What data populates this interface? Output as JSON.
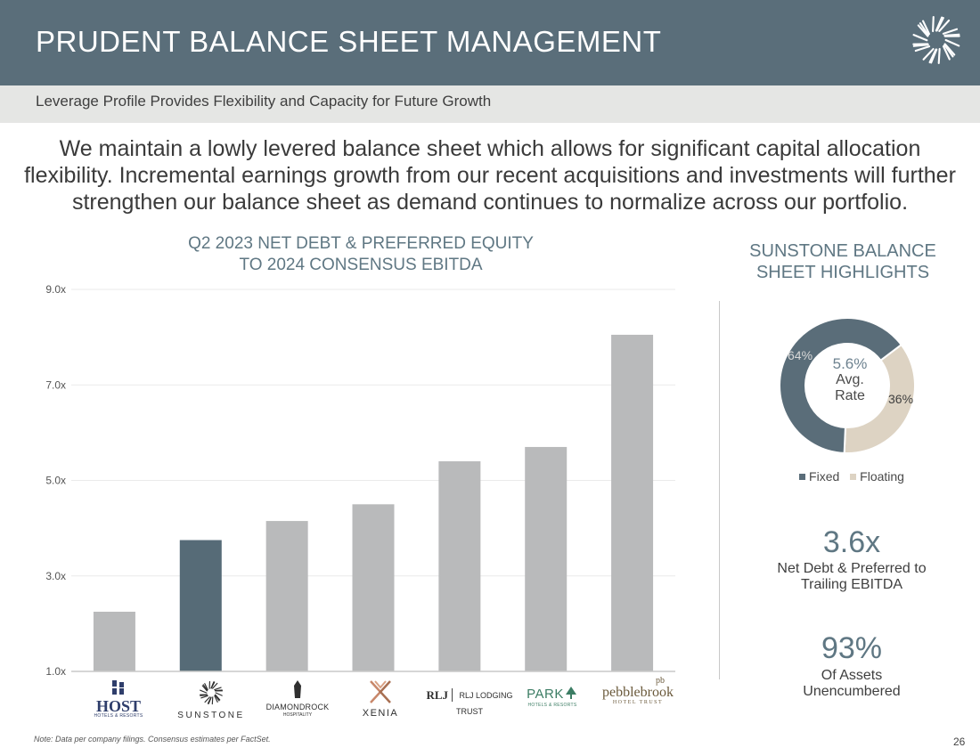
{
  "header": {
    "title": "PRUDENT BALANCE SHEET MANAGEMENT",
    "logo_icon": "sunburst-icon"
  },
  "subheader": {
    "text": "Leverage Profile Provides Flexibility and Capacity for Future Growth"
  },
  "intro": "We maintain a lowly levered balance sheet which allows for significant capital allocation flexibility. Incremental earnings growth from our recent acquisitions and investments will further strengthen our balance sheet as demand continues to normalize across our portfolio.",
  "chart_data": {
    "type": "bar",
    "title": "Q2 2023 NET DEBT & PREFERRED EQUITY TO 2024 CONSENSUS EBITDA",
    "title_line1": "Q2 2023 NET DEBT & PREFERRED EQUITY",
    "title_line2": "TO 2024 CONSENSUS EBITDA",
    "categories": [
      "Host Hotels & Resorts",
      "Sunstone",
      "DiamondRock Hospitality",
      "Xenia",
      "RLJ Lodging Trust",
      "Park Hotels & Resorts",
      "Pebblebrook Hotel Trust"
    ],
    "values": [
      2.25,
      3.75,
      4.15,
      4.5,
      5.4,
      5.7,
      8.05
    ],
    "highlight_index": 1,
    "ylim": [
      1.0,
      9.0
    ],
    "yticks": [
      1.0,
      3.0,
      5.0,
      7.0,
      9.0
    ],
    "ytick_labels": [
      "1.0x",
      "3.0x",
      "5.0x",
      "7.0x",
      "9.0x"
    ],
    "grid": true,
    "colors": {
      "bar": "#b9babb",
      "highlight": "#566b77",
      "grid": "#eaeaea",
      "axis": "#c9c9c9"
    }
  },
  "company_logos": {
    "host": {
      "name": "HOST",
      "sub": "HOTELS & RESORTS"
    },
    "sunstone": {
      "name": "SUNSTONE"
    },
    "diamondrock": {
      "name": "DIAMONDROCK",
      "sub": "HOSPITALITY"
    },
    "xenia": {
      "name": "XENIA"
    },
    "rlj": {
      "mark": "RLJ",
      "name": "RLJ LODGING TRUST"
    },
    "park": {
      "name": "PARK",
      "sub": "HOTELS & RESORTS"
    },
    "pebblebrook": {
      "name": "pebblebrook",
      "sub": "HOTEL TRUST",
      "mark": "pb"
    }
  },
  "sidebar": {
    "title": "SUNSTONE BALANCE SHEET HIGHLIGHTS",
    "title_line1": "SUNSTONE BALANCE",
    "title_line2": "SHEET HIGHLIGHTS",
    "donut": {
      "center_rate": "5.6%",
      "center_label_line1": "Avg.",
      "center_label_line2": "Rate",
      "segments": [
        {
          "name": "Fixed",
          "value": 64,
          "label": "64%",
          "color": "#5a6d79"
        },
        {
          "name": "Floating",
          "value": 36,
          "label": "36%",
          "color": "#ddd3c3"
        }
      ]
    },
    "stat1": {
      "value": "3.6x",
      "label_line1": "Net Debt & Preferred to",
      "label_line2": "Trailing EBITDA"
    },
    "stat2": {
      "value": "93%",
      "label_line1": "Of Assets",
      "label_line2": "Unencumbered"
    }
  },
  "footer": {
    "note": "Note: Data per company filings. Consensus estimates per FactSet.",
    "page_number": "26"
  }
}
